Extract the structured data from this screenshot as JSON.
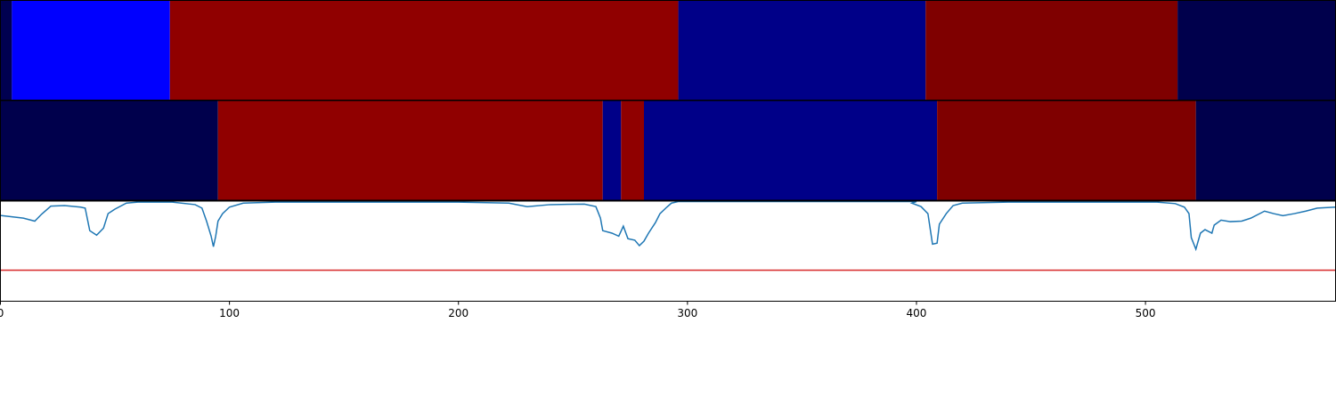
{
  "chart_data": {
    "type": "line",
    "xlim": [
      0,
      583
    ],
    "xticks": [
      0,
      100,
      200,
      300,
      400,
      500
    ],
    "ylim": [
      0,
      1
    ],
    "strips": [
      {
        "segments": [
          {
            "start": 0,
            "end": 5,
            "color": "#000050"
          },
          {
            "start": 5,
            "end": 74,
            "color": "#0000ff"
          },
          {
            "start": 74,
            "end": 296,
            "color": "#900000"
          },
          {
            "start": 296,
            "end": 404,
            "color": "#000088"
          },
          {
            "start": 404,
            "end": 514,
            "color": "#7f0000"
          },
          {
            "start": 514,
            "end": 583,
            "color": "#00004c"
          }
        ]
      },
      {
        "segments": [
          {
            "start": 0,
            "end": 95,
            "color": "#00004c"
          },
          {
            "start": 95,
            "end": 263,
            "color": "#900000"
          },
          {
            "start": 263,
            "end": 271,
            "color": "#000088"
          },
          {
            "start": 271,
            "end": 281,
            "color": "#900000"
          },
          {
            "start": 281,
            "end": 409,
            "color": "#000088"
          },
          {
            "start": 409,
            "end": 522,
            "color": "#7f0000"
          },
          {
            "start": 522,
            "end": 583,
            "color": "#00004c"
          }
        ]
      }
    ],
    "series": [
      {
        "color": "#1f77b4",
        "x": [
          0,
          10,
          15,
          18,
          22,
          28,
          35,
          37,
          39,
          42,
          45,
          47,
          50,
          55,
          60,
          75,
          85,
          88,
          90,
          92,
          93,
          94,
          95,
          97,
          100,
          106,
          120,
          200,
          222,
          230,
          240,
          255,
          260,
          262,
          263,
          267,
          270,
          272,
          274,
          277,
          279,
          281,
          283,
          286,
          288,
          291,
          293,
          296,
          300,
          400,
          398,
          402,
          405,
          407,
          409,
          410,
          413,
          416,
          420,
          440,
          505,
          513,
          517,
          519,
          520,
          522,
          524,
          526,
          529,
          530,
          533,
          537,
          542,
          546,
          552,
          556,
          560,
          565,
          570,
          575,
          583
        ],
        "values": [
          0.857,
          0.83,
          0.8,
          0.87,
          0.95,
          0.955,
          0.94,
          0.93,
          0.705,
          0.66,
          0.73,
          0.875,
          0.92,
          0.98,
          0.99,
          0.99,
          0.965,
          0.93,
          0.8,
          0.65,
          0.545,
          0.65,
          0.8,
          0.875,
          0.94,
          0.98,
          0.99,
          0.99,
          0.98,
          0.945,
          0.965,
          0.97,
          0.945,
          0.83,
          0.705,
          0.68,
          0.65,
          0.75,
          0.625,
          0.61,
          0.555,
          0.6,
          0.68,
          0.785,
          0.875,
          0.94,
          0.98,
          0.995,
          0.995,
          0.995,
          0.98,
          0.945,
          0.875,
          0.57,
          0.58,
          0.77,
          0.875,
          0.955,
          0.98,
          0.99,
          0.99,
          0.975,
          0.94,
          0.875,
          0.635,
          0.52,
          0.68,
          0.715,
          0.68,
          0.76,
          0.81,
          0.795,
          0.8,
          0.83,
          0.9,
          0.875,
          0.855,
          0.875,
          0.9,
          0.93,
          0.94
        ]
      },
      {
        "color": "#d62728",
        "x": [
          0,
          583
        ],
        "values": [
          0.31,
          0.31
        ]
      }
    ]
  }
}
